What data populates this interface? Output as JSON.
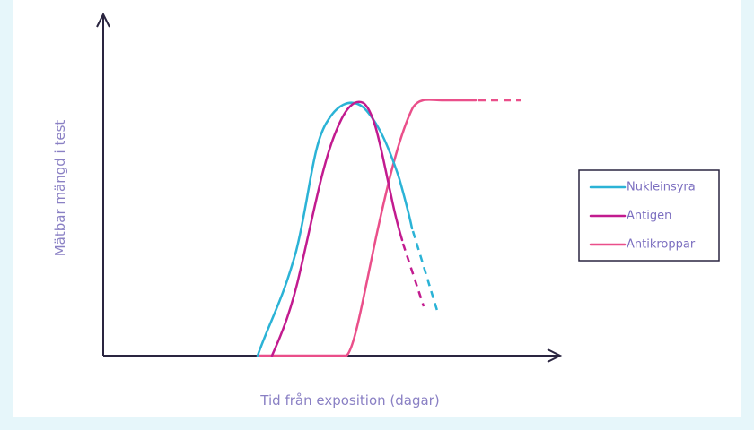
{
  "axes": {
    "y_label": "Mätbar mängd i test",
    "x_label": "Tid från exposition (dagar)"
  },
  "legend": {
    "items": [
      "Nukleinsyra",
      "Antigen",
      "Antikroppar"
    ]
  }
}
